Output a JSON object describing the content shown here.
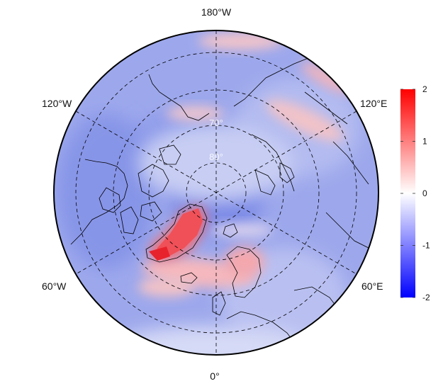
{
  "map": {
    "projection": "north-polar-stereographic",
    "longitude_labels": {
      "top": "180°W",
      "bottom": "0°",
      "upper_left": "120°W",
      "upper_right": "120°E",
      "lower_left": "60°W",
      "lower_right": "60°E"
    },
    "latitude_labels": {
      "lat70": "70°",
      "lat80": "80°"
    },
    "graticule_style": "dashed"
  },
  "colorbar": {
    "ticks": [
      "2",
      "1",
      "0",
      "-1",
      "-2"
    ],
    "min": -2,
    "max": 2,
    "colors": {
      "high": "#ff0000",
      "mid": "#ffffff",
      "low": "#0000ff"
    }
  },
  "field_pattern": [
    {
      "region": "greenland",
      "value": 1.3
    },
    {
      "region": "north-atlantic-band",
      "value": 0.6
    },
    {
      "region": "barents-arm",
      "value": 0.2
    },
    {
      "region": "arctic-basin",
      "value": -0.7
    },
    {
      "region": "east-siberia-coast",
      "value": 0.5
    },
    {
      "region": "north-america",
      "value": -0.6
    },
    {
      "region": "west-eurasia",
      "value": -0.3
    },
    {
      "region": "scandinavia",
      "value": 0.8
    }
  ]
}
